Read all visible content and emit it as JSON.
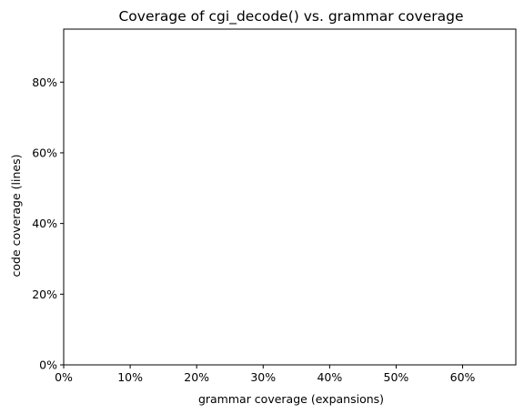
{
  "chart_data": {
    "type": "scatter",
    "title": "Coverage of cgi_decode() vs. grammar coverage",
    "xlabel": "grammar coverage (expansions)",
    "ylabel": "code coverage (lines)",
    "xlim": [
      0,
      0.68
    ],
    "ylim": [
      0,
      0.95
    ],
    "x_ticks": [
      0,
      0.1,
      0.2,
      0.3,
      0.4,
      0.5,
      0.6
    ],
    "x_tick_labels": [
      "0%",
      "10%",
      "20%",
      "30%",
      "40%",
      "50%",
      "60%"
    ],
    "y_ticks": [
      0,
      0.2,
      0.4,
      0.6,
      0.8
    ],
    "y_tick_labels": [
      "0%",
      "20%",
      "40%",
      "60%",
      "80%"
    ],
    "grid": false,
    "series": [
      {
        "x": [],
        "y": []
      }
    ]
  }
}
